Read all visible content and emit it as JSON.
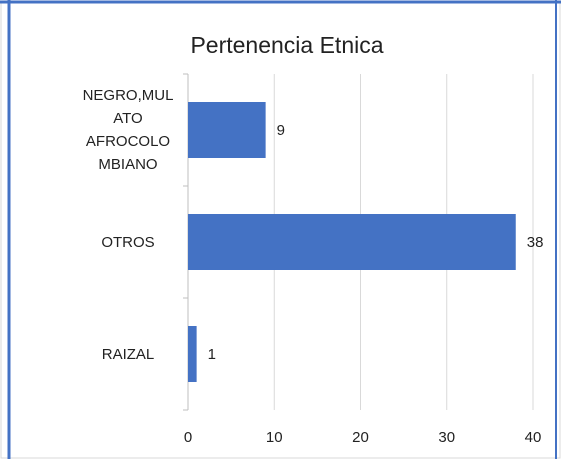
{
  "chart_data": {
    "type": "bar",
    "orientation": "horizontal",
    "title": "Pertenencia Etnica",
    "categories": [
      "NEGRO,MULATO AFROCOLOMBIANO",
      "OTROS",
      "RAIZAL"
    ],
    "values": [
      9,
      38,
      1
    ],
    "color": "#4472c4",
    "xlim": [
      0,
      40
    ],
    "xticks": [
      0,
      10,
      20,
      30,
      40
    ],
    "grid": true
  }
}
